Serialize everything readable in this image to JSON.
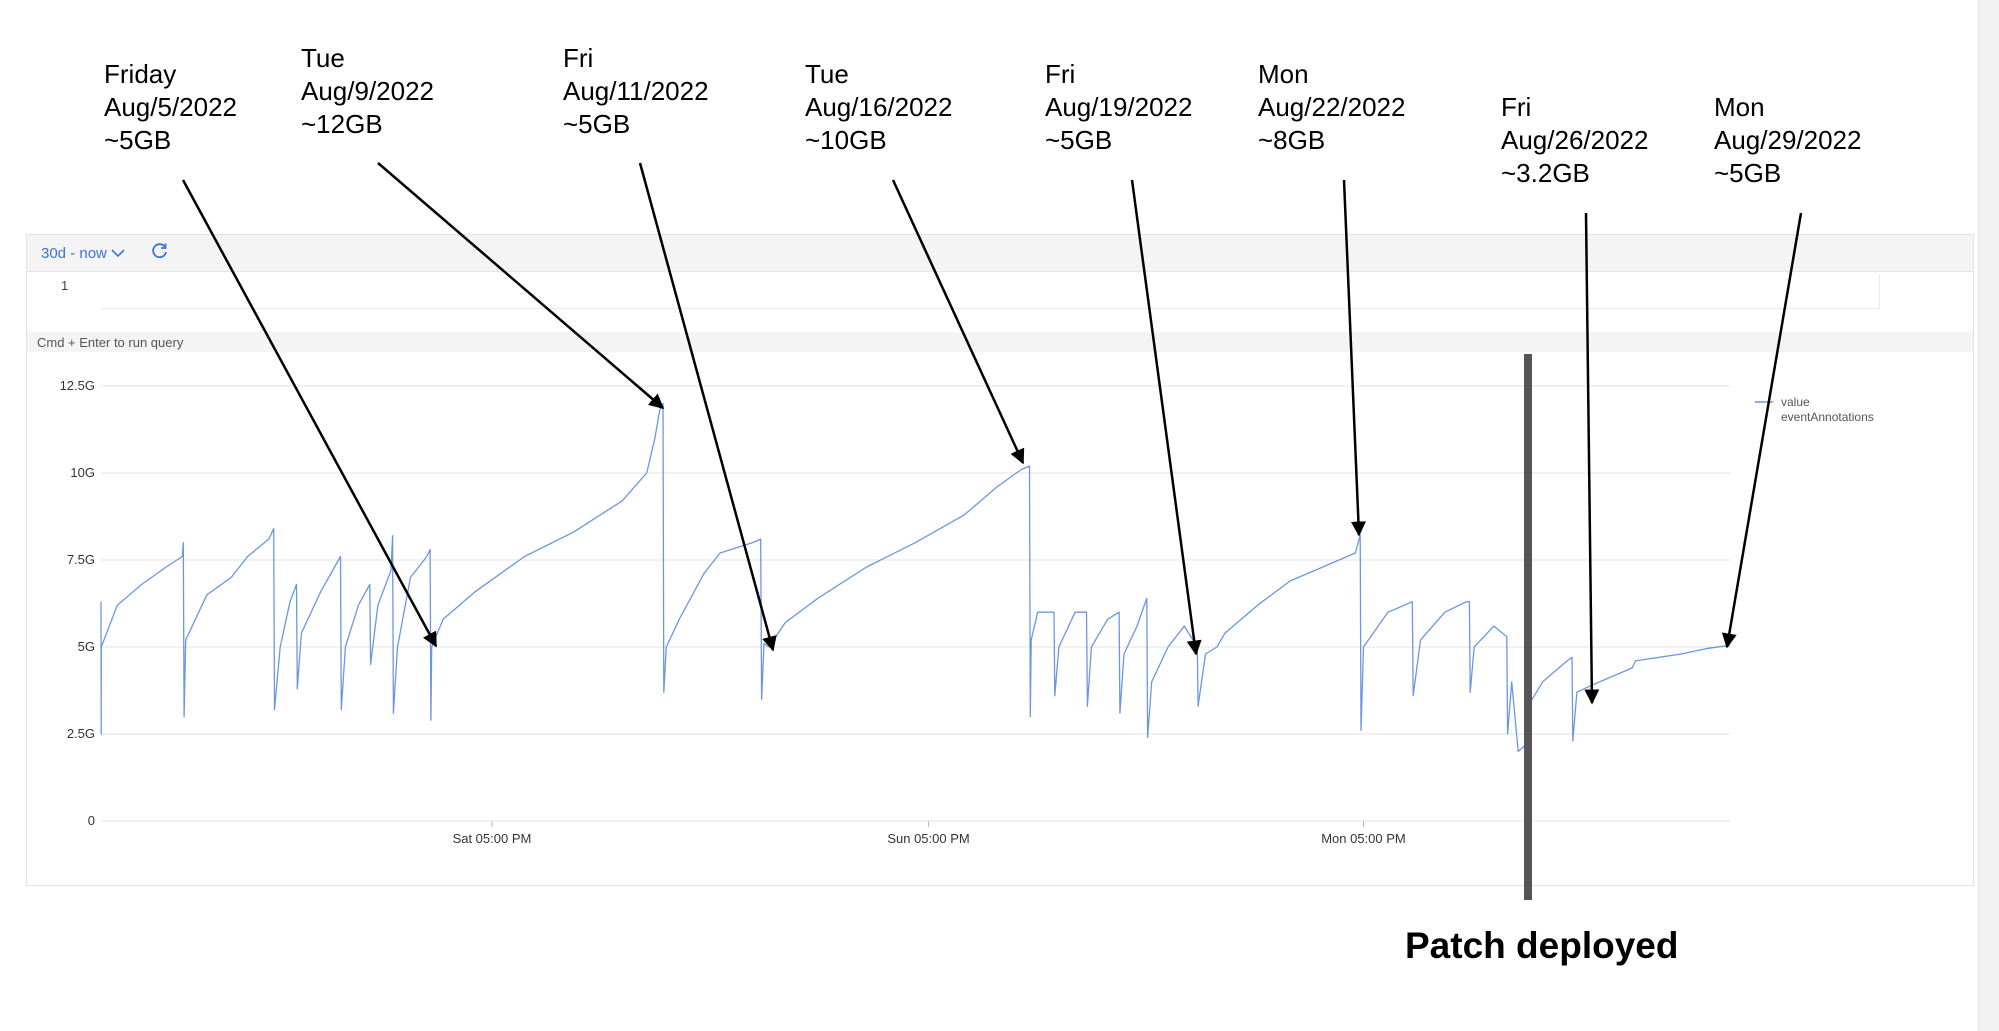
{
  "toolbar": {
    "time_range": "30d - now",
    "chevron_icon": "chevron-down-icon",
    "refresh_icon": "refresh-icon"
  },
  "editor": {
    "line_number": "1",
    "hint": "Cmd + Enter to run query"
  },
  "annotations": [
    {
      "day": "Friday",
      "date": "Aug/5/2022",
      "value": "~5GB"
    },
    {
      "day": "Tue",
      "date": "Aug/9/2022",
      "value": "~12GB"
    },
    {
      "day": "Fri",
      "date": "Aug/11/2022",
      "value": "~5GB"
    },
    {
      "day": "Tue",
      "date": "Aug/16/2022",
      "value": "~10GB"
    },
    {
      "day": "Fri",
      "date": "Aug/19/2022",
      "value": "~5GB"
    },
    {
      "day": "Mon",
      "date": "Aug/22/2022",
      "value": "~8GB"
    },
    {
      "day": "Fri",
      "date": "Aug/26/2022",
      "value": "~3.2GB"
    },
    {
      "day": "Mon",
      "date": "Aug/29/2022",
      "value": "~5GB"
    }
  ],
  "patch_label": "Patch deployed",
  "colors": {
    "series": "#6a97e3",
    "grid": "#e3e3e3",
    "accent": "#3b74d9",
    "patch_line": "#555555"
  },
  "chart_data": {
    "type": "line",
    "ylim": [
      0,
      12.5
    ],
    "y_ticks": [
      {
        "value": 0,
        "label": "0"
      },
      {
        "value": 2.5,
        "label": "2.5G"
      },
      {
        "value": 5,
        "label": "5G"
      },
      {
        "value": 7.5,
        "label": "7.5G"
      },
      {
        "value": 10,
        "label": "10G"
      },
      {
        "value": 12.5,
        "label": "12.5G"
      }
    ],
    "xlim": [
      0,
      100
    ],
    "x_ticks": [
      {
        "pos": 24.0,
        "label": "Sat 05:00 PM"
      },
      {
        "pos": 50.8,
        "label": "Sun 05:00 PM"
      },
      {
        "pos": 77.5,
        "label": "Mon 05:00 PM"
      }
    ],
    "grid": true,
    "legend": {
      "placement": "top-right",
      "entries": [
        "value",
        "eventAnnotations"
      ]
    },
    "series": [
      {
        "name": "value",
        "points": [
          [
            0,
            6.3
          ],
          [
            0.01,
            2.5
          ],
          [
            0.02,
            5.0
          ],
          [
            1.0,
            6.2
          ],
          [
            2.5,
            6.8
          ],
          [
            4.0,
            7.3
          ],
          [
            5.0,
            7.6
          ],
          [
            5.05,
            8.0
          ],
          [
            5.1,
            3.0
          ],
          [
            5.2,
            5.2
          ],
          [
            6.5,
            6.5
          ],
          [
            8.0,
            7.0
          ],
          [
            9.0,
            7.6
          ],
          [
            10.3,
            8.1
          ],
          [
            10.6,
            8.4
          ],
          [
            10.65,
            3.2
          ],
          [
            11.0,
            5.0
          ],
          [
            11.6,
            6.3
          ],
          [
            12.0,
            6.8
          ],
          [
            12.05,
            3.8
          ],
          [
            12.3,
            5.4
          ],
          [
            13.5,
            6.6
          ],
          [
            14.7,
            7.6
          ],
          [
            14.75,
            3.2
          ],
          [
            15.0,
            5.0
          ],
          [
            15.8,
            6.2
          ],
          [
            16.5,
            6.8
          ],
          [
            16.55,
            4.5
          ],
          [
            17.0,
            6.2
          ],
          [
            17.8,
            7.2
          ],
          [
            17.9,
            8.2
          ],
          [
            17.95,
            3.1
          ],
          [
            18.2,
            5.0
          ],
          [
            19.0,
            7.0
          ],
          [
            20.0,
            7.6
          ],
          [
            20.2,
            7.8
          ],
          [
            20.25,
            2.9
          ],
          [
            20.3,
            5.0
          ],
          [
            21.0,
            5.8
          ],
          [
            23.0,
            6.6
          ],
          [
            26.0,
            7.6
          ],
          [
            29.0,
            8.3
          ],
          [
            32.0,
            9.2
          ],
          [
            33.5,
            10.0
          ],
          [
            34.0,
            11.0
          ],
          [
            34.3,
            11.8
          ],
          [
            34.5,
            12.0
          ],
          [
            34.55,
            3.7
          ],
          [
            34.7,
            5.0
          ],
          [
            35.5,
            5.8
          ],
          [
            37.0,
            7.1
          ],
          [
            38.0,
            7.7
          ],
          [
            40.0,
            8.0
          ],
          [
            40.5,
            8.1
          ],
          [
            40.55,
            3.5
          ],
          [
            40.7,
            5.1
          ],
          [
            41.0,
            5.0
          ],
          [
            42.0,
            5.7
          ],
          [
            44.0,
            6.4
          ],
          [
            47.0,
            7.3
          ],
          [
            50.0,
            8.0
          ],
          [
            53.0,
            8.8
          ],
          [
            55.0,
            9.6
          ],
          [
            56.5,
            10.1
          ],
          [
            57.0,
            10.2
          ],
          [
            57.05,
            3.0
          ],
          [
            57.1,
            5.2
          ],
          [
            57.5,
            6.0
          ],
          [
            58.5,
            6.0
          ],
          [
            58.55,
            3.6
          ],
          [
            58.8,
            5.0
          ],
          [
            59.8,
            6.0
          ],
          [
            60.5,
            6.0
          ],
          [
            60.55,
            3.3
          ],
          [
            60.8,
            5.0
          ],
          [
            61.8,
            5.8
          ],
          [
            62.5,
            6.0
          ],
          [
            62.55,
            3.1
          ],
          [
            62.8,
            4.8
          ],
          [
            63.6,
            5.6
          ],
          [
            64.2,
            6.4
          ],
          [
            64.25,
            2.4
          ],
          [
            64.5,
            4.0
          ],
          [
            65.5,
            5.0
          ],
          [
            66.5,
            5.6
          ],
          [
            67.3,
            5.0
          ],
          [
            67.35,
            3.3
          ],
          [
            67.8,
            4.8
          ],
          [
            68.5,
            5.0
          ],
          [
            69.0,
            5.4
          ],
          [
            71.0,
            6.2
          ],
          [
            73.0,
            6.9
          ],
          [
            75.0,
            7.3
          ],
          [
            77.0,
            7.7
          ],
          [
            77.3,
            8.2
          ],
          [
            77.35,
            2.6
          ],
          [
            77.5,
            5.0
          ],
          [
            79.0,
            6.0
          ],
          [
            80.5,
            6.3
          ],
          [
            80.55,
            3.6
          ],
          [
            81.0,
            5.2
          ],
          [
            82.5,
            6.0
          ],
          [
            83.8,
            6.3
          ],
          [
            84.0,
            6.3
          ],
          [
            84.05,
            3.7
          ],
          [
            84.3,
            5.0
          ],
          [
            85.5,
            5.6
          ],
          [
            86.3,
            5.3
          ],
          [
            86.35,
            2.5
          ],
          [
            86.6,
            4.0
          ],
          [
            87.0,
            2.0
          ],
          [
            87.5,
            2.2
          ],
          [
            87.6,
            3.3
          ],
          [
            88.5,
            4.0
          ],
          [
            90.0,
            4.6
          ],
          [
            90.3,
            4.7
          ],
          [
            90.35,
            2.3
          ],
          [
            90.6,
            3.7
          ],
          [
            91.5,
            3.9
          ],
          [
            94.0,
            4.4
          ],
          [
            94.2,
            4.6
          ],
          [
            97.0,
            4.8
          ],
          [
            98.5,
            4.95
          ],
          [
            100.0,
            5.05
          ]
        ]
      }
    ],
    "patch_x": 87.6
  }
}
